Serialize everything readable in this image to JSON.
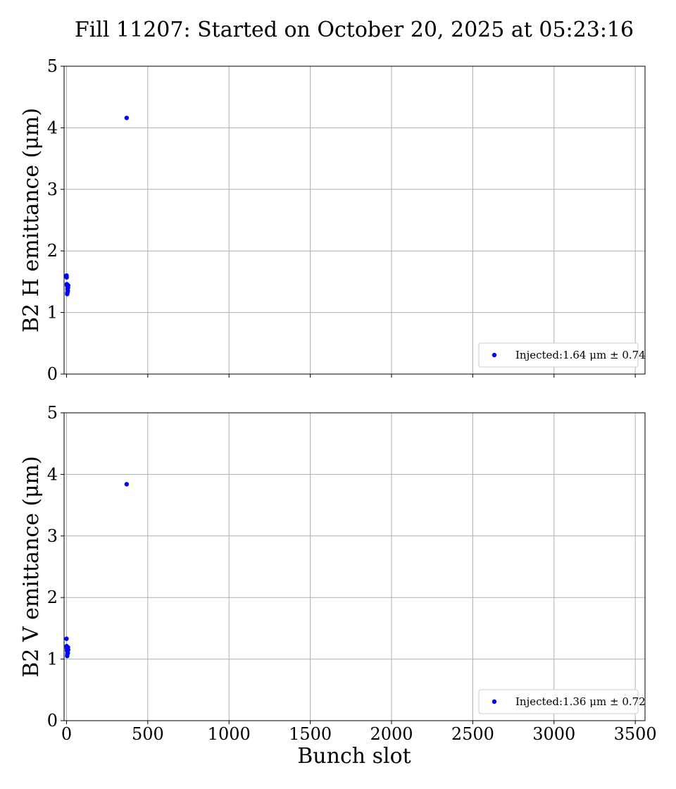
{
  "figure": {
    "title": "Fill 11207: Started on October 20, 2025 at 05:23:16",
    "xlabel": "Bunch slot"
  },
  "chart_data": [
    {
      "type": "scatter",
      "ylabel": "B2 H emittance (μm)",
      "xlim": [
        -15,
        3560
      ],
      "ylim": [
        0,
        5
      ],
      "xticks": [
        0,
        500,
        1000,
        1500,
        2000,
        2500,
        3000,
        3500
      ],
      "yticks": [
        0,
        1,
        2,
        3,
        4,
        5
      ],
      "show_xticklabels": false,
      "grid": true,
      "legend_position": "lower-right",
      "series": [
        {
          "name": "Injected:1.64 μm ± 0.74",
          "color": "#0000ff",
          "x": [
            0,
            1,
            2,
            3,
            4,
            5,
            6,
            7,
            8,
            9,
            10,
            370
          ],
          "y": [
            1.6,
            1.57,
            1.46,
            1.44,
            1.3,
            1.32,
            1.38,
            1.42,
            1.35,
            1.4,
            1.44,
            4.16
          ]
        }
      ]
    },
    {
      "type": "scatter",
      "ylabel": "B2 V emittance (μm)",
      "xlim": [
        -15,
        3560
      ],
      "ylim": [
        0,
        5
      ],
      "xticks": [
        0,
        500,
        1000,
        1500,
        2000,
        2500,
        3000,
        3500
      ],
      "yticks": [
        0,
        1,
        2,
        3,
        4,
        5
      ],
      "show_xticklabels": true,
      "grid": true,
      "legend_position": "lower-right",
      "series": [
        {
          "name": "Injected:1.36 μm ± 0.72",
          "color": "#0000ff",
          "x": [
            0,
            1,
            2,
            3,
            4,
            5,
            6,
            7,
            8,
            9,
            10,
            370
          ],
          "y": [
            1.33,
            1.21,
            1.18,
            1.14,
            1.05,
            1.08,
            1.12,
            1.16,
            1.1,
            1.19,
            1.15,
            3.84
          ]
        }
      ]
    }
  ]
}
